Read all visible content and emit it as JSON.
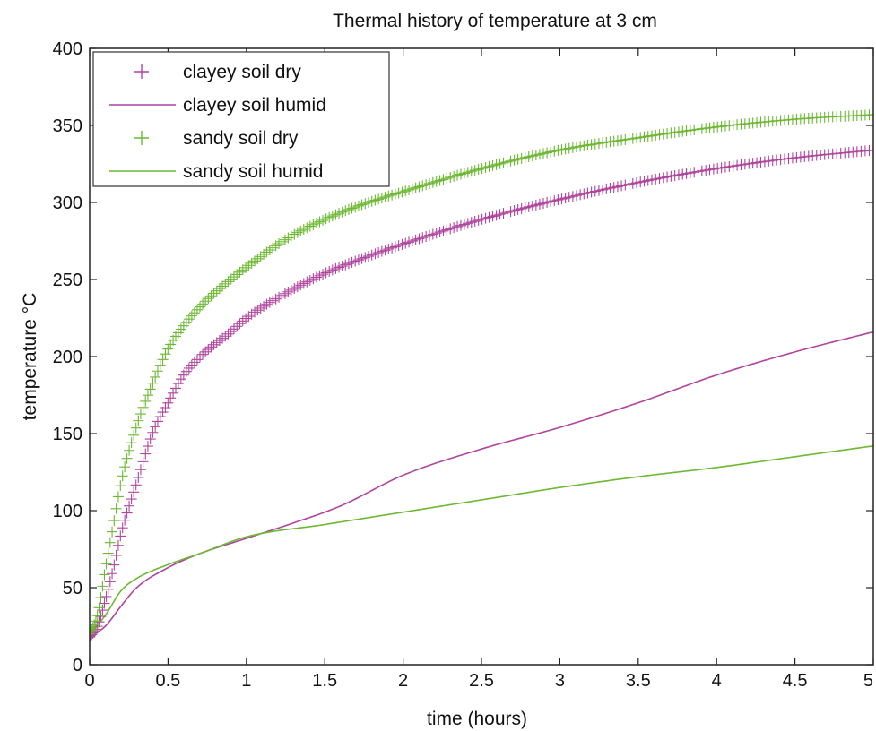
{
  "chart_data": {
    "type": "line",
    "title": "Thermal history of temperature at 3 cm",
    "xlabel": "time (hours)",
    "ylabel": "temperature °C",
    "xlim": [
      0,
      5
    ],
    "ylim": [
      0,
      400
    ],
    "xticks": [
      0,
      0.5,
      1,
      1.5,
      2,
      2.5,
      3,
      3.5,
      4,
      4.5,
      5
    ],
    "xtick_labels": [
      "0",
      "0.5",
      "1",
      "1.5",
      "2",
      "2.5",
      "3",
      "3.5",
      "4",
      "4.5",
      "5"
    ],
    "yticks": [
      0,
      50,
      100,
      150,
      200,
      250,
      300,
      350,
      400
    ],
    "ytick_labels": [
      "0",
      "50",
      "100",
      "150",
      "200",
      "250",
      "300",
      "350",
      "400"
    ],
    "grid": false,
    "legend_position": "top-left",
    "series": [
      {
        "name": "clayey soil dry",
        "style": "markers",
        "marker": "+",
        "color": "#b0449e",
        "x": [
          0,
          0.05,
          0.1,
          0.15,
          0.2,
          0.3,
          0.4,
          0.5,
          0.6,
          0.75,
          0.9,
          1.0,
          1.25,
          1.5,
          1.75,
          2.0,
          2.5,
          3.0,
          3.5,
          4.0,
          4.5,
          5.0
        ],
        "y": [
          18,
          25,
          42,
          62,
          85,
          118,
          150,
          170,
          188,
          204,
          216,
          225,
          241,
          254,
          264,
          273,
          289,
          302,
          313,
          322,
          329,
          334
        ]
      },
      {
        "name": "clayey soil humid",
        "style": "line",
        "color": "#b0449e",
        "x": [
          0,
          0.1,
          0.2,
          0.3,
          0.5,
          0.7,
          1.0,
          1.3,
          1.6,
          2.0,
          2.5,
          3.0,
          3.5,
          4.0,
          4.5,
          5.0
        ],
        "y": [
          18,
          25,
          38,
          50,
          63,
          72,
          82,
          92,
          103,
          123,
          140,
          154,
          170,
          188,
          203,
          216
        ]
      },
      {
        "name": "sandy soil dry",
        "style": "markers",
        "marker": "+",
        "color": "#6cb832",
        "x": [
          0,
          0.05,
          0.1,
          0.15,
          0.2,
          0.3,
          0.4,
          0.5,
          0.6,
          0.75,
          0.9,
          1.0,
          1.25,
          1.5,
          1.75,
          2.0,
          2.5,
          3.0,
          3.5,
          4.0,
          4.5,
          5.0
        ],
        "y": [
          20,
          32,
          62,
          90,
          118,
          155,
          182,
          205,
          220,
          237,
          250,
          258,
          276,
          289,
          299,
          307,
          322,
          334,
          342,
          349,
          354,
          357
        ]
      },
      {
        "name": "sandy soil humid",
        "style": "line",
        "color": "#6cb832",
        "x": [
          0,
          0.1,
          0.2,
          0.3,
          0.5,
          0.7,
          1.0,
          1.5,
          2.0,
          2.5,
          3.0,
          3.5,
          4.0,
          4.5,
          5.0
        ],
        "y": [
          20,
          32,
          48,
          56,
          65,
          72,
          83,
          91,
          99,
          107,
          115,
          122,
          128,
          135,
          142
        ]
      }
    ]
  }
}
